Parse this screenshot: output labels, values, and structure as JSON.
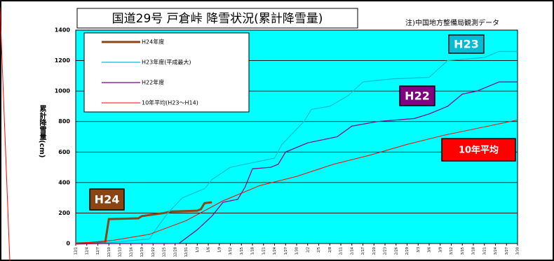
{
  "chart_data": {
    "type": "line",
    "title": "国道29号 戸倉峠 降雪状況(累計降雪量)",
    "note": "注)中国地方整備局観測データ",
    "y_label": "累計降雪量(cm)",
    "xlim": [
      0,
      120
    ],
    "ylim": [
      0,
      1400
    ],
    "yticks": [
      0,
      200,
      400,
      600,
      800,
      1000,
      1200,
      1400
    ],
    "xticks": [
      {
        "value": 0,
        "label": "12/1"
      },
      {
        "value": 3,
        "label": "12/4"
      },
      {
        "value": 6,
        "label": "12/7"
      },
      {
        "value": 9,
        "label": "12/10"
      },
      {
        "value": 12,
        "label": "12/13"
      },
      {
        "value": 15,
        "label": "12/16"
      },
      {
        "value": 18,
        "label": "12/19"
      },
      {
        "value": 21,
        "label": "12/22"
      },
      {
        "value": 24,
        "label": "12/25"
      },
      {
        "value": 27,
        "label": "12/28"
      },
      {
        "value": 30,
        "label": "12/31"
      },
      {
        "value": 33,
        "label": "1/3"
      },
      {
        "value": 36,
        "label": "1/6"
      },
      {
        "value": 39,
        "label": "1/9"
      },
      {
        "value": 42,
        "label": "1/12"
      },
      {
        "value": 45,
        "label": "1/15"
      },
      {
        "value": 48,
        "label": "1/18"
      },
      {
        "value": 51,
        "label": "1/21"
      },
      {
        "value": 54,
        "label": "1/24"
      },
      {
        "value": 57,
        "label": "1/27"
      },
      {
        "value": 60,
        "label": "1/30"
      },
      {
        "value": 63,
        "label": "2/2"
      },
      {
        "value": 66,
        "label": "2/5"
      },
      {
        "value": 69,
        "label": "2/8"
      },
      {
        "value": 72,
        "label": "2/11"
      },
      {
        "value": 75,
        "label": "2/14"
      },
      {
        "value": 78,
        "label": "2/17"
      },
      {
        "value": 81,
        "label": "2/20"
      },
      {
        "value": 84,
        "label": "2/23"
      },
      {
        "value": 87,
        "label": "2/26"
      },
      {
        "value": 90,
        "label": "2/29"
      },
      {
        "value": 93,
        "label": "3/3"
      },
      {
        "value": 96,
        "label": "3/6"
      },
      {
        "value": 99,
        "label": "3/9"
      },
      {
        "value": 102,
        "label": "3/12"
      },
      {
        "value": 105,
        "label": "3/15"
      },
      {
        "value": 108,
        "label": "3/18"
      },
      {
        "value": 111,
        "label": "3/21"
      },
      {
        "value": 114,
        "label": "3/24"
      },
      {
        "value": 117,
        "label": "3/27"
      },
      {
        "value": 120,
        "label": "3/30"
      }
    ],
    "grid": true,
    "background": "#00ffff",
    "series": [
      {
        "name": "H24年度",
        "color": "#8b4513",
        "width": 3,
        "x": [
          0,
          8,
          9,
          17,
          18,
          24,
          26,
          33,
          34,
          35,
          37
        ],
        "values": [
          0,
          5,
          160,
          165,
          180,
          200,
          210,
          215,
          225,
          265,
          270
        ]
      },
      {
        "name": "H23年度(平成最大)",
        "color": "#00bcd4",
        "width": 1.2,
        "x": [
          0,
          9,
          20,
          22,
          25,
          29,
          32,
          35,
          37,
          42,
          46,
          54,
          56,
          58,
          62,
          64,
          69,
          74,
          78,
          86,
          96,
          101,
          111,
          115,
          120
        ],
        "values": [
          0,
          5,
          30,
          100,
          200,
          300,
          330,
          360,
          420,
          500,
          520,
          560,
          650,
          700,
          800,
          880,
          900,
          970,
          1060,
          1080,
          1090,
          1200,
          1220,
          1260,
          1260
        ]
      },
      {
        "name": "H22年度",
        "color": "#800080",
        "width": 1.2,
        "x": [
          0,
          28,
          33,
          37,
          40,
          44,
          46,
          48,
          53,
          55,
          57,
          63,
          71,
          75,
          82,
          92,
          96,
          101,
          105,
          109,
          115,
          120
        ],
        "values": [
          0,
          0,
          90,
          180,
          270,
          290,
          370,
          490,
          500,
          520,
          600,
          660,
          700,
          770,
          800,
          820,
          850,
          900,
          980,
          1000,
          1060,
          1060
        ]
      },
      {
        "name": "10年平均(H23～H14)",
        "color": "#ff0000",
        "width": 1,
        "x": [
          0,
          10,
          20,
          30,
          40,
          50,
          60,
          70,
          80,
          90,
          100,
          110,
          120
        ],
        "values": [
          0,
          20,
          60,
          150,
          280,
          380,
          440,
          520,
          580,
          650,
          710,
          760,
          810
        ]
      }
    ],
    "annotations": [
      {
        "text": "H23",
        "color": "#00bcd4"
      },
      {
        "text": "H22",
        "color": "#800080"
      },
      {
        "text": "10年平均",
        "color": "#ff0000"
      },
      {
        "text": "H24",
        "color": "#8b4513"
      }
    ]
  }
}
